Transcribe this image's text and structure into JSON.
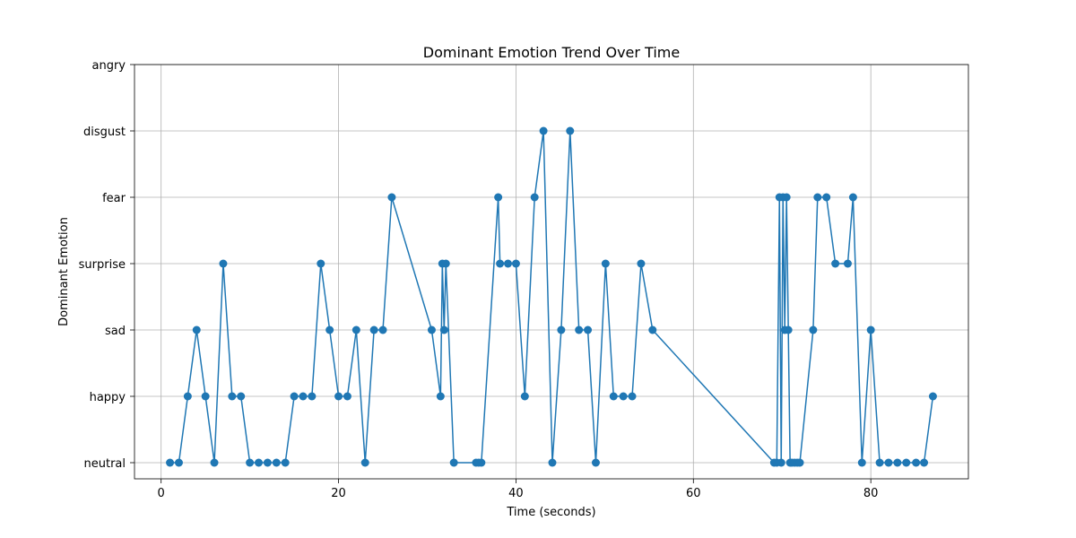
{
  "chart_data": {
    "type": "line",
    "title": "Dominant Emotion Trend Over Time",
    "xlabel": "Time (seconds)",
    "ylabel": "Dominant Emotion",
    "xlim": [
      -3,
      91
    ],
    "x_ticks": [
      0,
      20,
      40,
      60,
      80
    ],
    "categories_y": [
      "neutral",
      "happy",
      "sad",
      "surprise",
      "fear",
      "disgust",
      "angry"
    ],
    "grid": true,
    "marker": "circle",
    "series_color": "#1f77b4",
    "series": [
      {
        "x": [
          1,
          2,
          3,
          4,
          5,
          6,
          7,
          8,
          9,
          10,
          11,
          12,
          13,
          14,
          15,
          16,
          17,
          18,
          19,
          20,
          21,
          22,
          23,
          24,
          25,
          26,
          30.5,
          31.5,
          31.7,
          31.9,
          32.1,
          33,
          35.5,
          35.8,
          36.1,
          38,
          38.2,
          39.1,
          40,
          41,
          42.1,
          43.1,
          44.1,
          45.1,
          46.1,
          47.1,
          48.1,
          49,
          50.1,
          51,
          52.1,
          53.1,
          54.1,
          55.4,
          69.1,
          69.4,
          69.7,
          69.9,
          70.1,
          70.3,
          70.5,
          70.7,
          70.9,
          71.1,
          71.4,
          71.7,
          72,
          73.5,
          74,
          75,
          76,
          77.4,
          78,
          79,
          80,
          81,
          82,
          83,
          84,
          85.1,
          86,
          87
        ],
        "y": [
          "neutral",
          "neutral",
          "happy",
          "sad",
          "happy",
          "neutral",
          "surprise",
          "happy",
          "happy",
          "neutral",
          "neutral",
          "neutral",
          "neutral",
          "neutral",
          "happy",
          "happy",
          "happy",
          "surprise",
          "sad",
          "happy",
          "happy",
          "sad",
          "neutral",
          "sad",
          "sad",
          "fear",
          "sad",
          "happy",
          "surprise",
          "sad",
          "surprise",
          "neutral",
          "neutral",
          "neutral",
          "neutral",
          "fear",
          "surprise",
          "surprise",
          "surprise",
          "happy",
          "fear",
          "disgust",
          "neutral",
          "sad",
          "disgust",
          "sad",
          "sad",
          "neutral",
          "surprise",
          "happy",
          "happy",
          "happy",
          "surprise",
          "sad",
          "neutral",
          "neutral",
          "fear",
          "neutral",
          "fear",
          "sad",
          "fear",
          "sad",
          "neutral",
          "neutral",
          "neutral",
          "neutral",
          "neutral",
          "sad",
          "fear",
          "fear",
          "surprise",
          "surprise",
          "fear",
          "neutral",
          "sad",
          "neutral",
          "neutral",
          "neutral",
          "neutral",
          "neutral",
          "neutral",
          "happy"
        ]
      }
    ]
  }
}
